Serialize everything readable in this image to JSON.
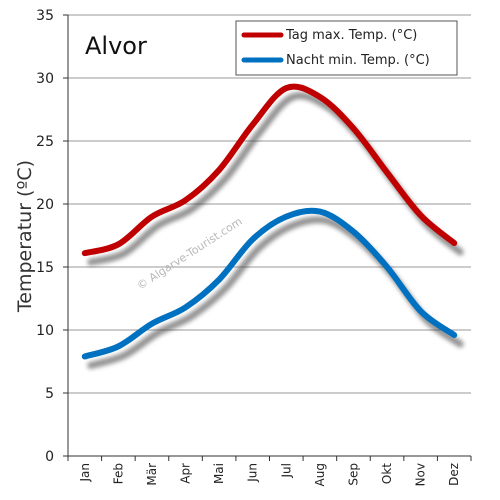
{
  "chart_data": {
    "type": "line",
    "title": "Alvor",
    "ylabel": "Temperatur (ºC)",
    "xlabel": "",
    "categories": [
      "Jan",
      "Feb",
      "Mär",
      "Apr",
      "Mai",
      "Jun",
      "Jul",
      "Aug",
      "Sep",
      "Okt",
      "Nov",
      "Dez"
    ],
    "ylim": [
      0,
      35
    ],
    "yticks": [
      0,
      5,
      10,
      15,
      20,
      25,
      30,
      35
    ],
    "grid": true,
    "legend_position": "top-right",
    "series": [
      {
        "name": "Tag max. Temp. (°C)",
        "color": "#c00000",
        "values": [
          16.1,
          16.8,
          19.0,
          20.3,
          22.7,
          26.3,
          29.2,
          28.5,
          26.0,
          22.5,
          19.1,
          16.9
        ]
      },
      {
        "name": "Nacht min. Temp. (°C)",
        "color": "#0070c0",
        "values": [
          7.9,
          8.7,
          10.5,
          11.8,
          14.0,
          17.2,
          19.0,
          19.4,
          17.8,
          15.0,
          11.5,
          9.6
        ]
      }
    ],
    "watermark": "© Algarve-Tourist.com"
  }
}
